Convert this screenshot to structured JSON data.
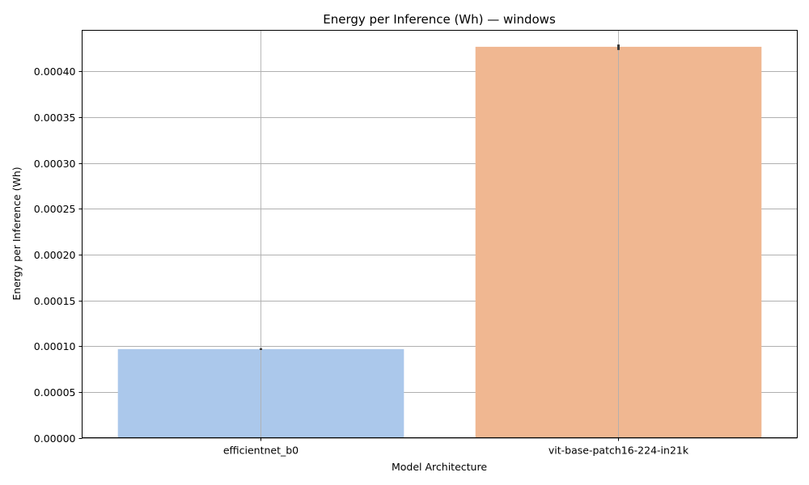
{
  "chart_data": {
    "type": "bar",
    "title": "Energy per Inference (Wh) — windows",
    "xlabel": "Model Architecture",
    "ylabel": "Energy per Inference (Wh)",
    "categories": [
      "efficientnet_b0",
      "vit-base-patch16-224-in21k"
    ],
    "values": [
      9.68e-05,
      0.000427
    ],
    "error_low": [
      9.58e-05,
      0.0004235
    ],
    "error_high": [
      9.78e-05,
      0.0004295
    ],
    "ylim": [
      0,
      0.000445
    ],
    "yticks": [
      0,
      5e-05,
      0.0001,
      0.00015,
      0.0002,
      0.00025,
      0.0003,
      0.00035,
      0.0004
    ],
    "ytick_labels": [
      "0.00000",
      "0.00005",
      "0.00010",
      "0.00015",
      "0.00020",
      "0.00025",
      "0.00030",
      "0.00035",
      "0.00040"
    ],
    "grid": true,
    "colors": [
      "#abc8eb",
      "#f0b791"
    ]
  }
}
